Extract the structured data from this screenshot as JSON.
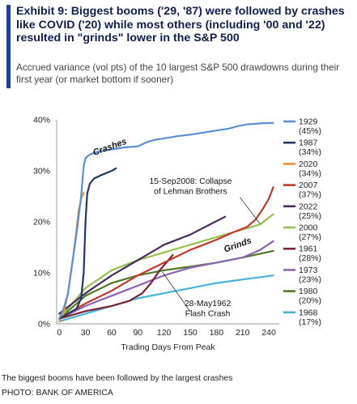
{
  "exhibit": {
    "title": "Exhibit 9: Biggest booms ('29, '87) were followed by crashes like COVID ('20) while most others (including '00 and '22) resulted in \"grinds\" lower in the S&P 500",
    "subtitle": "Accrued variance (vol pts) of the 10 largest S&P 500 drawdowns during their first year (or market bottom if sooner)"
  },
  "caption": "The biggest booms have been followed by the largest crashes",
  "credit": "PHOTO: BANK OF AMERICA",
  "chart_data": {
    "type": "line",
    "xlabel": "Trading Days From Peak",
    "ylabel": "",
    "xlim": [
      -3,
      252
    ],
    "ylim": [
      0,
      40
    ],
    "xticks": [
      0,
      30,
      60,
      90,
      120,
      150,
      180,
      210,
      240
    ],
    "yticks": [
      0,
      10,
      20,
      30,
      40
    ],
    "ytick_labels": [
      "0%",
      "10%",
      "20%",
      "30%",
      "40%"
    ],
    "grid": false,
    "legend_position": "right",
    "annotations": [
      {
        "text": "Crashes",
        "x": 40,
        "y": 33
      },
      {
        "text": "15-Sep2008: Collapse",
        "x": 155,
        "y": 27.5
      },
      {
        "text": "of Lehman Brothers",
        "x": 155,
        "y": 25.5
      },
      {
        "text": "Grinds",
        "x": 190,
        "y": 14
      },
      {
        "text": "28-May1962",
        "x": 170,
        "y": 3.5
      },
      {
        "text": "Flash Crash",
        "x": 170,
        "y": 1.5
      }
    ],
    "series": [
      {
        "name": "1929",
        "pct": "(45%)",
        "color": "#5b8fd1",
        "x": [
          0,
          5,
          10,
          15,
          20,
          25,
          28,
          30,
          35,
          45,
          60,
          75,
          90,
          100,
          110,
          125,
          135,
          150,
          165,
          180,
          195,
          205,
          215,
          230,
          245
        ],
        "y": [
          1,
          3,
          6,
          12,
          18,
          25,
          31,
          32.5,
          33.2,
          33.8,
          34.2,
          34.6,
          34.8,
          35.6,
          36.1,
          36.5,
          36.8,
          37.1,
          37.5,
          37.9,
          38.3,
          38.8,
          39.1,
          39.3,
          39.4
        ]
      },
      {
        "name": "1987",
        "pct": "(34%)",
        "color": "#1f3864",
        "x": [
          0,
          10,
          20,
          25,
          28,
          30,
          32,
          35,
          40,
          50,
          60,
          65
        ],
        "y": [
          1,
          2,
          3,
          5,
          10,
          20,
          25.5,
          27.5,
          28.5,
          29.3,
          30,
          30.5
        ]
      },
      {
        "name": "2020",
        "pct": "(34%)",
        "color": "#f0903b",
        "x": [
          0,
          5,
          10,
          15,
          18,
          20,
          22,
          25,
          28
        ],
        "y": [
          0.5,
          2,
          6,
          12,
          16,
          19,
          22,
          24.5,
          25.7
        ]
      },
      {
        "name": "2007",
        "pct": "(37%)",
        "color": "#c0392b",
        "x": [
          0,
          30,
          60,
          90,
          120,
          150,
          180,
          200,
          215,
          225,
          233,
          240,
          245
        ],
        "y": [
          1,
          4,
          6.5,
          9.5,
          12,
          14.5,
          16.5,
          18,
          19,
          20.5,
          22.5,
          24.5,
          26.8
        ]
      },
      {
        "name": "2022",
        "pct": "(25%)",
        "color": "#4b2a61",
        "x": [
          0,
          30,
          60,
          90,
          120,
          150,
          175,
          190
        ],
        "y": [
          2,
          6,
          9.5,
          12.5,
          15.5,
          17.5,
          19.7,
          21
        ]
      },
      {
        "name": "2000",
        "pct": "(27%)",
        "color": "#92c14e",
        "x": [
          0,
          15,
          30,
          60,
          90,
          120,
          150,
          180,
          210,
          230,
          245
        ],
        "y": [
          1,
          4,
          7,
          10.5,
          12.5,
          14,
          15.5,
          17,
          18.5,
          19.5,
          21.5
        ]
      },
      {
        "name": "1961",
        "pct": "(28%)",
        "color": "#7b2330",
        "x": [
          0,
          30,
          60,
          80,
          95,
          105,
          115,
          125,
          130
        ],
        "y": [
          1,
          2.5,
          3.5,
          4.5,
          6,
          8,
          10.5,
          12.5,
          13.5
        ]
      },
      {
        "name": "1973",
        "pct": "(23%)",
        "color": "#8e63b3",
        "x": [
          0,
          30,
          60,
          90,
          120,
          150,
          180,
          210,
          230,
          245
        ],
        "y": [
          1,
          3.5,
          5.5,
          7.5,
          9.5,
          11,
          12,
          13,
          14.5,
          16.2
        ]
      },
      {
        "name": "1980",
        "pct": "(20%)",
        "color": "#4e7a26",
        "x": [
          0,
          30,
          60,
          90,
          120,
          150,
          180,
          210,
          245
        ],
        "y": [
          1,
          5.5,
          8,
          9.5,
          10.5,
          11.2,
          12,
          13,
          14.3
        ]
      },
      {
        "name": "1968",
        "pct": "(17%)",
        "color": "#45b3d9",
        "x": [
          0,
          30,
          60,
          90,
          120,
          150,
          180,
          210,
          245
        ],
        "y": [
          0.5,
          2,
          3.5,
          5,
          6,
          7,
          8,
          8.7,
          9.5
        ]
      }
    ]
  }
}
